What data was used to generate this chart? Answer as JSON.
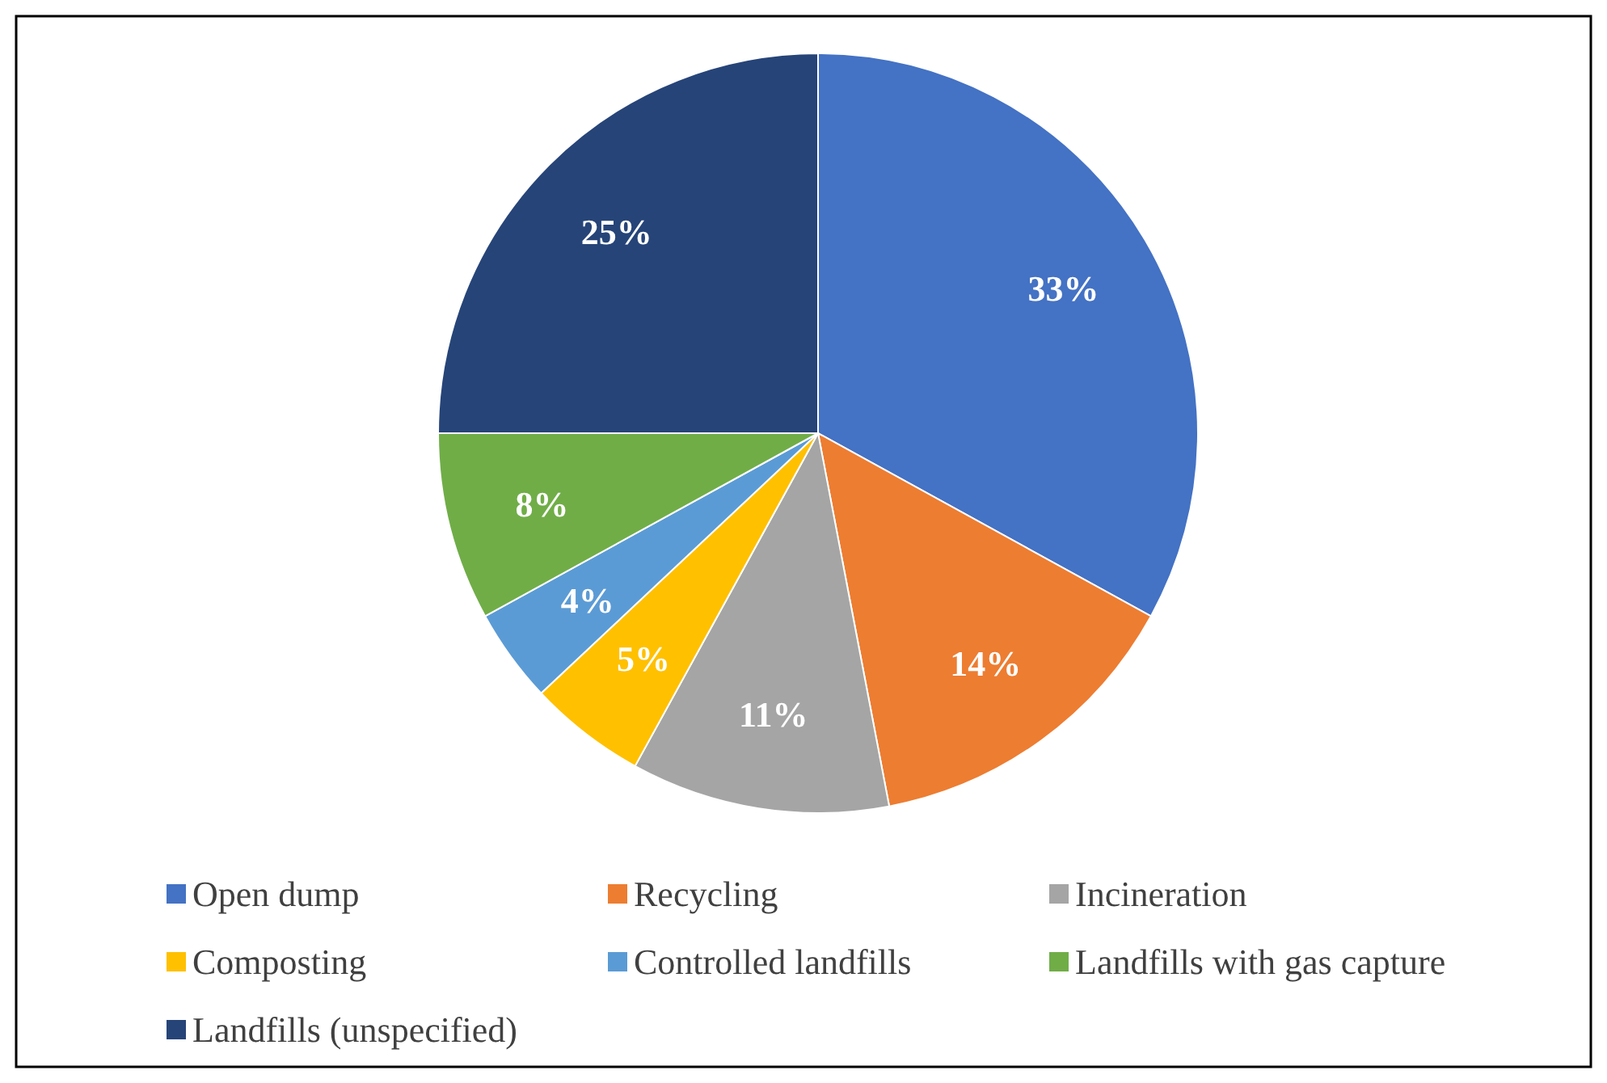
{
  "chart_data": {
    "type": "pie",
    "categories": [
      "Open dump",
      "Recycling",
      "Incineration",
      "Composting",
      "Controlled landfills",
      "Landfills with gas capture",
      "Landfills (unspecified)"
    ],
    "values": [
      33,
      14,
      11,
      5,
      4,
      8,
      25
    ],
    "colors": [
      "#4472c4",
      "#ed7d31",
      "#a5a5a5",
      "#ffc000",
      "#5b9bd5",
      "#70ad47",
      "#264478"
    ],
    "value_labels": [
      "33%",
      "14%",
      "11%",
      "5%",
      "4%",
      "8%",
      "25%"
    ],
    "legend": "bottom"
  }
}
